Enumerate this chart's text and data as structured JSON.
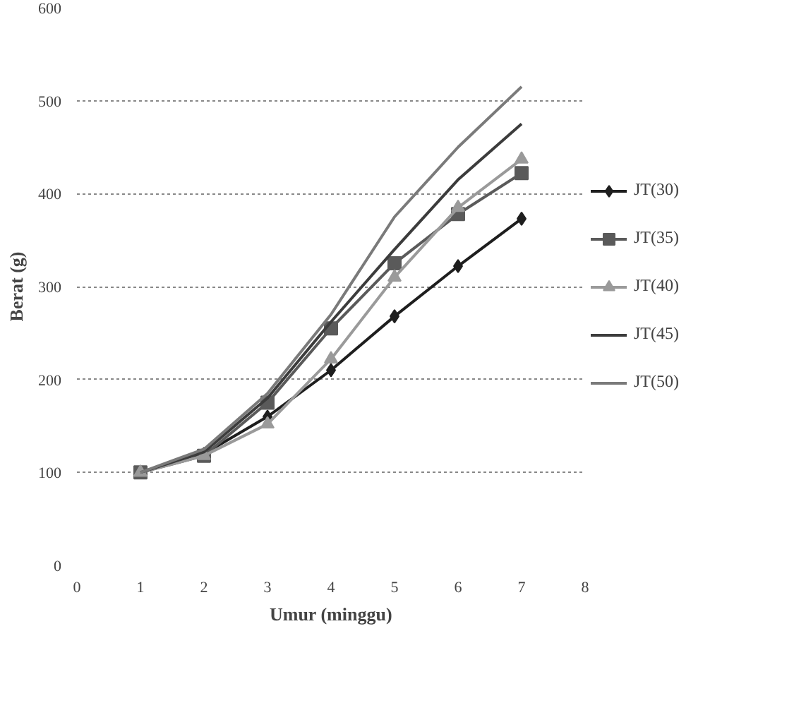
{
  "chart_data": {
    "type": "line",
    "xlabel": "Umur (minggu)",
    "ylabel": "Berat (g)",
    "x": [
      1,
      2,
      3,
      4,
      5,
      6,
      7
    ],
    "xlim": [
      0,
      8
    ],
    "xticks": [
      0,
      1,
      2,
      3,
      4,
      5,
      6,
      7,
      8
    ],
    "ylim": [
      0,
      600
    ],
    "yticks": [
      0,
      100,
      200,
      300,
      400,
      500,
      600
    ],
    "grid": "y",
    "legend": "right",
    "line_style": "solid",
    "series": [
      {
        "name": "JT(30)",
        "color": "#1e1e1e",
        "marker": "diamond",
        "values": [
          100,
          120,
          160,
          210,
          268,
          322,
          373
        ]
      },
      {
        "name": "JT(35)",
        "color": "#5a5a5a",
        "marker": "square",
        "values": [
          100,
          118,
          175,
          255,
          325,
          378,
          422
        ]
      },
      {
        "name": "JT(40)",
        "color": "#9a9a9a",
        "marker": "triangle",
        "values": [
          100,
          118,
          152,
          222,
          310,
          385,
          437
        ]
      },
      {
        "name": "JT(45)",
        "color": "#3c3c3c",
        "marker": "none",
        "values": [
          100,
          122,
          180,
          262,
          340,
          415,
          475
        ]
      },
      {
        "name": "JT(50)",
        "color": "#7a7a7a",
        "marker": "none",
        "values": [
          100,
          125,
          185,
          270,
          375,
          450,
          515
        ]
      }
    ]
  }
}
